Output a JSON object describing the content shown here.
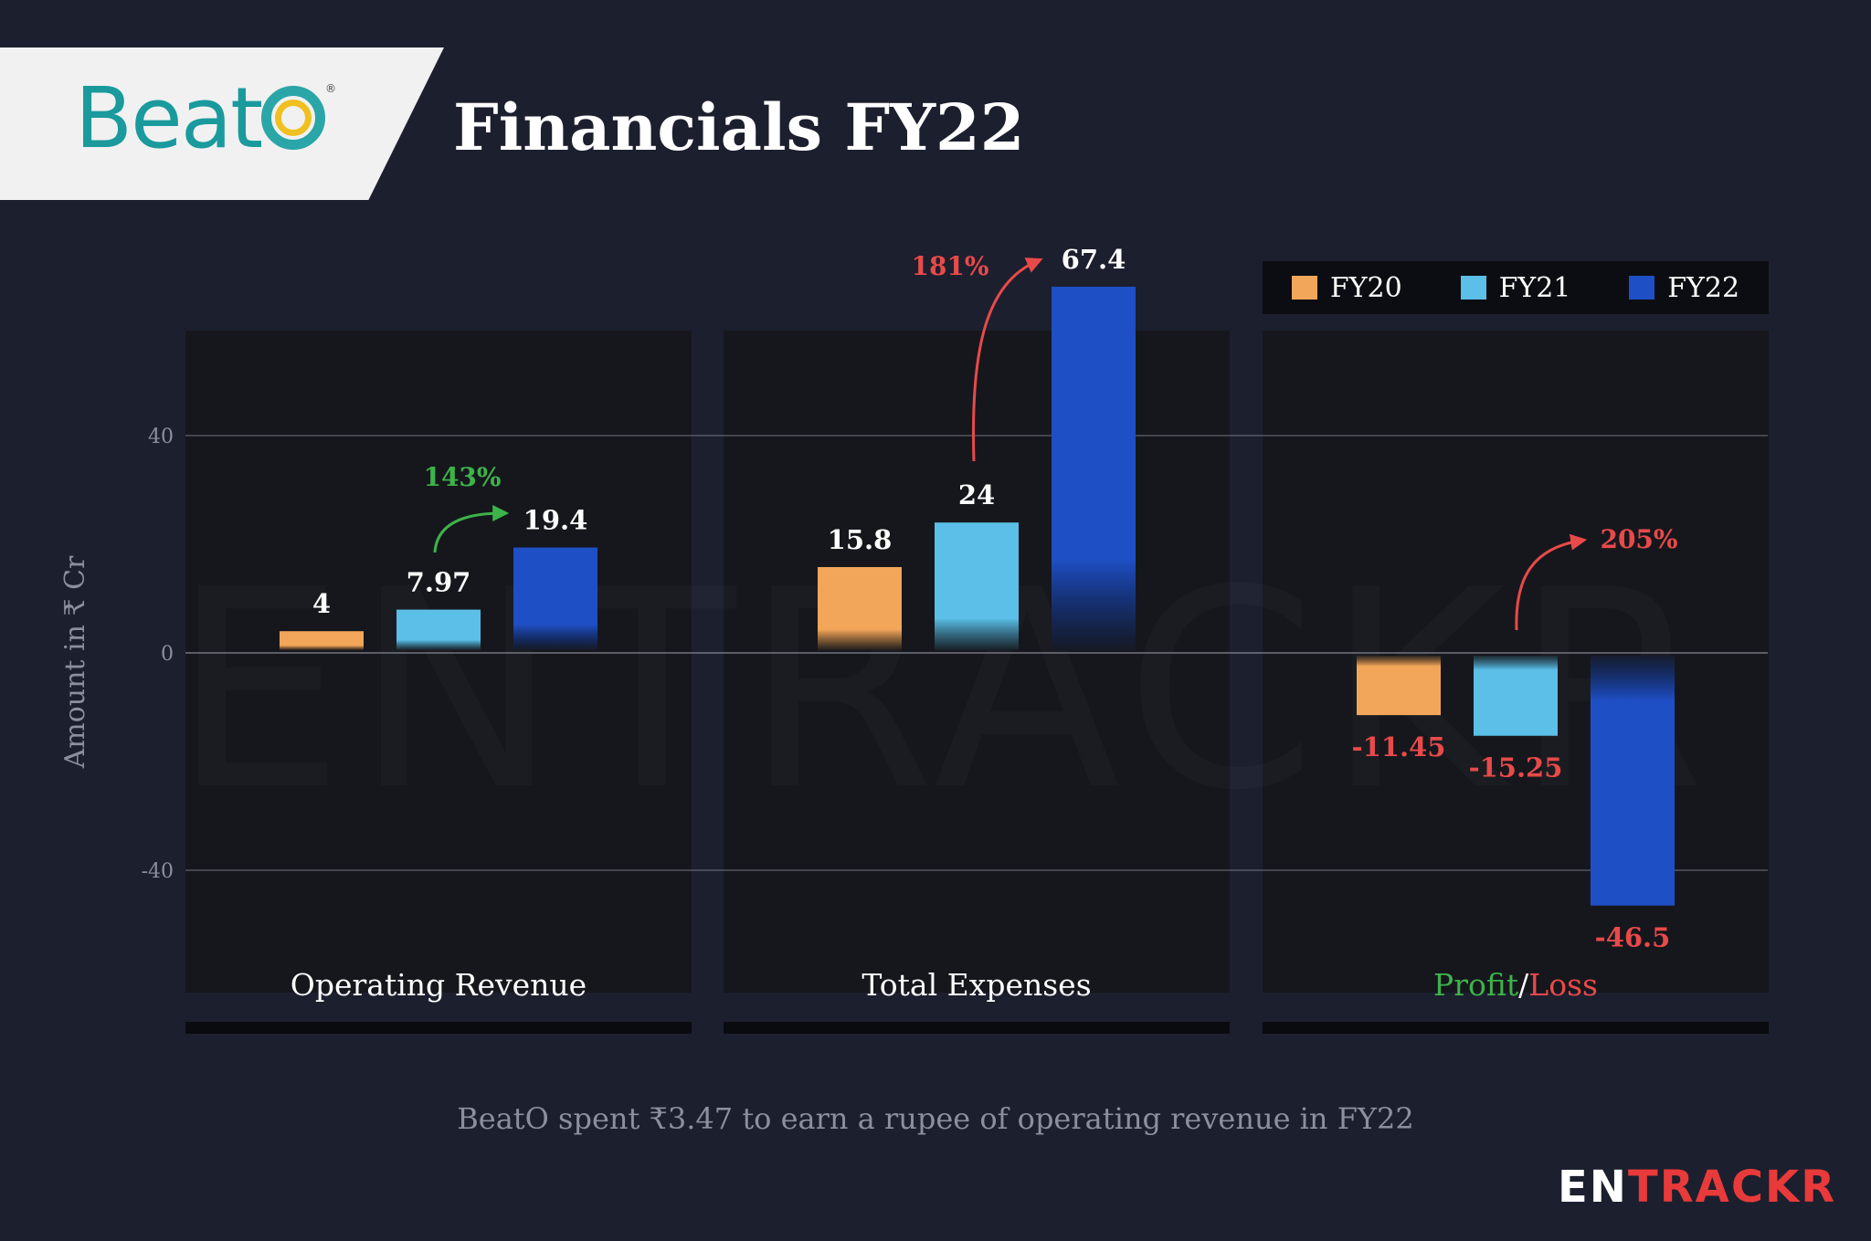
{
  "header": {
    "logo_text": "Beat",
    "logo_brand": "BeatO",
    "title": "Financials FY22"
  },
  "legend": [
    {
      "label": "FY20",
      "color": "#f2a65a"
    },
    {
      "label": "FY21",
      "color": "#5bbfe8"
    },
    {
      "label": "FY22",
      "color": "#1f4fc4"
    }
  ],
  "chart_data": {
    "type": "bar",
    "ylabel": "Amount in ₹ Cr",
    "ylim": [
      -50,
      70
    ],
    "yticks": [
      40,
      0,
      -40
    ],
    "categories": [
      "Operating Revenue",
      "Total Expenses",
      "Profit/Loss"
    ],
    "series": [
      {
        "name": "FY20",
        "values": [
          4,
          15.8,
          -11.45
        ],
        "color": "#f2a65a"
      },
      {
        "name": "FY21",
        "values": [
          7.97,
          24,
          -15.25
        ],
        "color": "#5bbfe8"
      },
      {
        "name": "FY22",
        "values": [
          19.4,
          67.4,
          -46.5
        ],
        "color": "#1f4fc4"
      }
    ],
    "value_labels": [
      [
        "4",
        "7.97",
        "19.4"
      ],
      [
        "15.8",
        "24",
        "67.4"
      ],
      [
        "-11.45",
        "-15.25",
        "-46.5"
      ]
    ],
    "growth_annotations": [
      "143%",
      "181%",
      "205%"
    ],
    "profit_label": "Profit",
    "separator": "/",
    "loss_label": "Loss",
    "grid": true,
    "legend_position": "top-right"
  },
  "colors": {
    "positive": "#3db34a",
    "negative": "#e84a4a",
    "background": "#1c1f2e",
    "panel": "#16171d"
  },
  "caption": "BeatO spent ₹3.47 to earn a rupee of operating revenue in FY22",
  "watermark": "ENTRACKR",
  "brand": {
    "part1": "EN",
    "part2": "TRACKR"
  }
}
